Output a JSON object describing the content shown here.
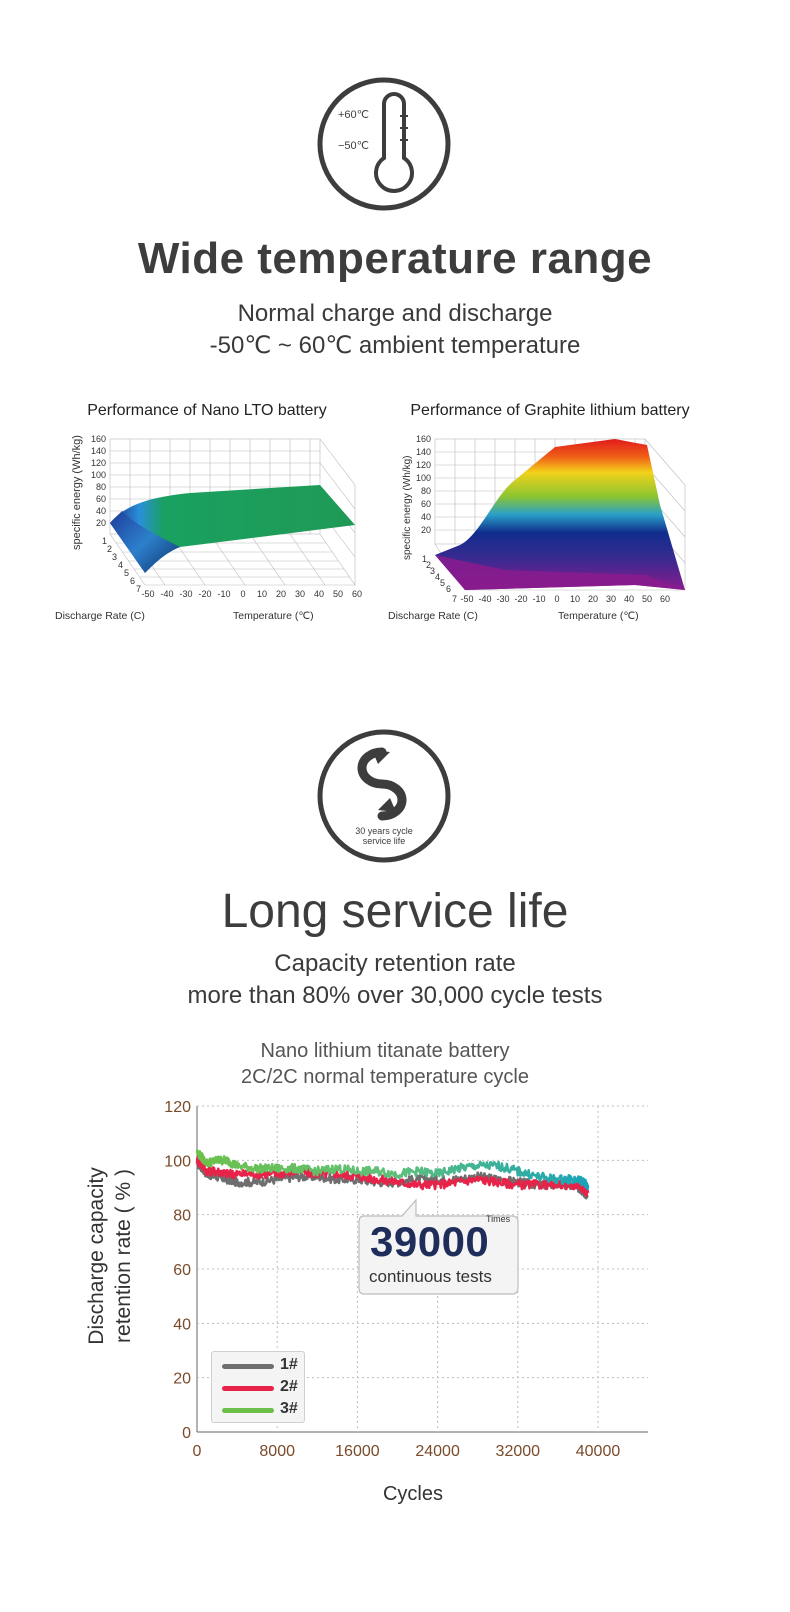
{
  "section1": {
    "icon_label_top": "+60℃",
    "icon_label_bottom": "−50℃",
    "title": "Wide temperature range",
    "subtitle_line1": "Normal charge and discharge",
    "subtitle_line2": "-50℃ ~ 60℃ ambient temperature"
  },
  "section2": {
    "icon_label_line1": "30 years cycle",
    "icon_label_line2": "service life",
    "title": "Long service life",
    "subtitle_line1": "Capacity retention rate",
    "subtitle_line2": "more than 80% over 30,000 cycle tests"
  },
  "callout": {
    "number": "39000",
    "unit": "Times",
    "text": "continuous tests"
  },
  "colors": {
    "series_1": "#6e6e6e",
    "series_2": "#e8234a",
    "series_3": "#6cc04a",
    "series_3_late": "#1aa3b8",
    "title_text": "#3d3d3d",
    "axis_tick_text": "#7a4a2a"
  },
  "chart_data": [
    {
      "type": "surface",
      "title": "Performance of Nano LTO battery",
      "xlabel": "Temperature (℃)",
      "ylabel": "Discharge Rate (C)",
      "zlabel": "specific energy (Wh/kg)",
      "x_ticks": [
        "-50",
        "-40",
        "-30",
        "-20",
        "-10",
        "0",
        "10",
        "20",
        "30",
        "40",
        "50",
        "60"
      ],
      "y_ticks": [
        "1",
        "2",
        "3",
        "4",
        "5",
        "6",
        "7"
      ],
      "z_ticks": [
        "20",
        "40",
        "60",
        "80",
        "100",
        "120",
        "140",
        "160"
      ],
      "zlim": [
        0,
        160
      ],
      "description_values": {
        "temperature": [
          -50,
          -40,
          -30,
          -20,
          -10,
          0,
          10,
          20,
          30,
          40,
          50,
          60
        ],
        "energy_at_rate_1": [
          55,
          78,
          85,
          88,
          90,
          92,
          93,
          94,
          95,
          96,
          97,
          97
        ],
        "energy_at_rate_7": [
          0,
          28,
          40,
          45,
          48,
          50,
          52,
          54,
          56,
          58,
          60,
          62
        ]
      }
    },
    {
      "type": "surface",
      "title": "Performance of Graphite lithium battery",
      "xlabel": "Temperature (℃)",
      "ylabel": "Discharge Rate (C)",
      "zlabel": "specific energy (Wh/kg)",
      "x_ticks": [
        "-50",
        "-40",
        "-30",
        "-20",
        "-10",
        "0",
        "10",
        "20",
        "30",
        "40",
        "50",
        "60"
      ],
      "y_ticks": [
        "1",
        "2",
        "3",
        "4",
        "5",
        "6",
        "7"
      ],
      "z_ticks": [
        "20",
        "40",
        "60",
        "80",
        "100",
        "120",
        "140",
        "160"
      ],
      "zlim": [
        0,
        160
      ],
      "description_values": {
        "temperature": [
          -50,
          -40,
          -30,
          -20,
          -10,
          0,
          10,
          20,
          30,
          40,
          50,
          60
        ],
        "energy_at_rate_1": [
          5,
          25,
          60,
          110,
          125,
          140,
          152,
          158,
          160,
          158,
          20,
          0
        ],
        "energy_at_rate_7": [
          0,
          0,
          5,
          10,
          15,
          20,
          25,
          30,
          35,
          40,
          5,
          0
        ]
      }
    },
    {
      "type": "line",
      "title": "Nano lithium titanate battery",
      "subtitle": "2C/2C normal temperature cycle",
      "xlabel": "Cycles",
      "ylabel": "Discharge capacity retention rate ( % )",
      "xlim": [
        0,
        40000
      ],
      "ylim": [
        0,
        120
      ],
      "x_ticks": [
        "0",
        "8000",
        "16000",
        "24000",
        "32000",
        "40000"
      ],
      "y_ticks": [
        "0",
        "20",
        "40",
        "60",
        "80",
        "100",
        "120"
      ],
      "grid": true,
      "legend": "bottom-left",
      "x": [
        0,
        1000,
        2000,
        3000,
        4000,
        6000,
        8000,
        10000,
        12000,
        14000,
        16000,
        18000,
        20000,
        22000,
        24000,
        26000,
        28000,
        30000,
        32000,
        34000,
        36000,
        38000,
        39000
      ],
      "series": [
        {
          "name": "1#",
          "values": [
            99,
            95,
            94,
            93,
            92,
            92,
            93,
            94,
            94,
            93,
            93,
            92,
            92,
            93,
            93,
            93,
            94,
            93,
            92,
            91,
            91,
            90,
            87
          ]
        },
        {
          "name": "2#",
          "values": [
            100,
            96,
            96,
            95,
            95,
            95,
            95,
            96,
            95,
            95,
            94,
            93,
            92,
            91,
            91,
            92,
            93,
            92,
            91,
            91,
            91,
            91,
            88
          ]
        },
        {
          "name": "3#",
          "values": [
            103,
            99,
            100,
            100,
            98,
            97,
            97,
            97,
            96,
            97,
            96,
            96,
            95,
            96,
            95,
            97,
            98,
            98,
            96,
            94,
            93,
            93,
            91
          ]
        }
      ]
    }
  ]
}
